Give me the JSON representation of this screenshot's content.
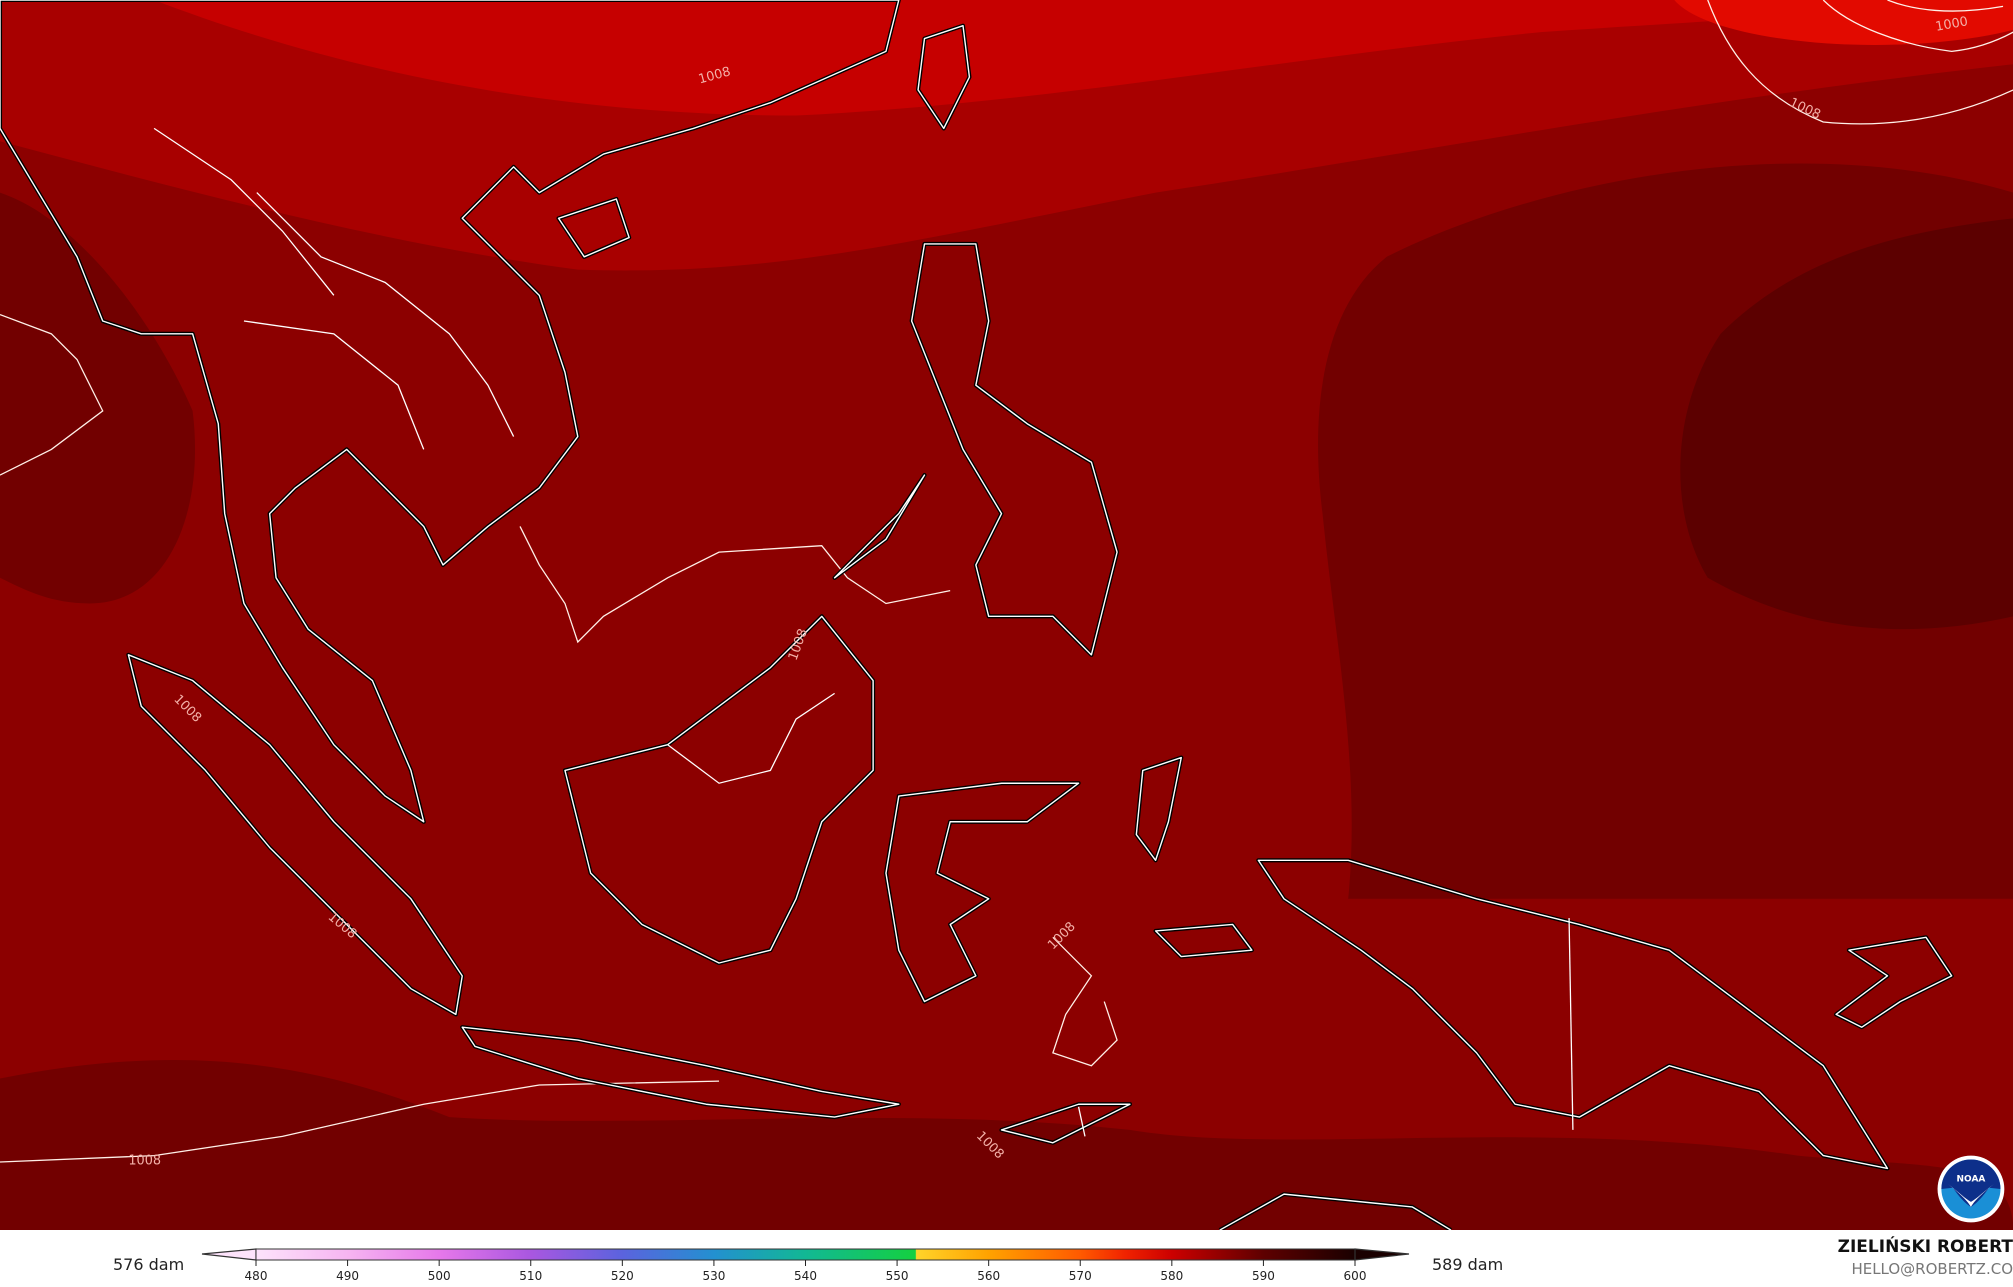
{
  "map": {
    "field_colors": {
      "brightest": "#e20a00",
      "bright": "#c60000",
      "upper": "#a80000",
      "base": "#8c0000",
      "dark": "#720000",
      "darkest": "#5c0000"
    },
    "coast_color": "#000000",
    "border_color": "#ffffff",
    "contour_color": "#fff0e8",
    "contour_labels": [
      "1000",
      "1008",
      "1008",
      "1008",
      "1008",
      "1008",
      "1008",
      "1008",
      "1008"
    ],
    "logo": {
      "text": "NOAA",
      "icon": "noaa-logo-icon"
    }
  },
  "legend": {
    "left_unit_label": "576 dam",
    "right_unit_label": "589 dam",
    "ticks": [
      "480",
      "490",
      "500",
      "510",
      "520",
      "530",
      "540",
      "550",
      "560",
      "570",
      "580",
      "590",
      "600"
    ],
    "range": [
      480,
      600
    ],
    "color_stops": [
      {
        "v": 480,
        "c": "#fde3fb"
      },
      {
        "v": 490,
        "c": "#f6b5f1"
      },
      {
        "v": 500,
        "c": "#e678ea"
      },
      {
        "v": 510,
        "c": "#a957e0"
      },
      {
        "v": 520,
        "c": "#5b63de"
      },
      {
        "v": 530,
        "c": "#2390d0"
      },
      {
        "v": 540,
        "c": "#12b894"
      },
      {
        "v": 552,
        "c": "#14d040"
      },
      {
        "v": 552.1,
        "c": "#ffd42a"
      },
      {
        "v": 560,
        "c": "#ffa200"
      },
      {
        "v": 570,
        "c": "#ff5a00"
      },
      {
        "v": 575,
        "c": "#f02200"
      },
      {
        "v": 580,
        "c": "#cc0000"
      },
      {
        "v": 590,
        "c": "#5e0000"
      },
      {
        "v": 600,
        "c": "#1a0000"
      }
    ]
  },
  "credit": {
    "name": "ZIELIŃSKI ROBERT",
    "email": "HELLO@ROBERTZ.CO"
  }
}
